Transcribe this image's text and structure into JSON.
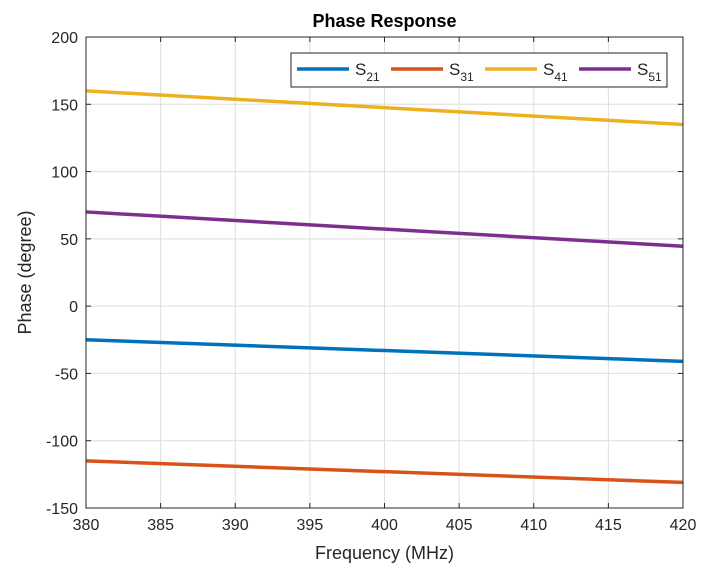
{
  "chart_data": {
    "type": "line",
    "title": "Phase Response",
    "xlabel": "Frequency (MHz)",
    "ylabel": "Phase (degree)",
    "xlim": [
      380,
      420
    ],
    "ylim": [
      -150,
      200
    ],
    "xticks": [
      380,
      385,
      390,
      395,
      400,
      405,
      410,
      415,
      420
    ],
    "yticks": [
      -150,
      -100,
      -50,
      0,
      50,
      100,
      150,
      200
    ],
    "grid": true,
    "legend_position": "top-right",
    "legend_orientation": "horizontal",
    "series": [
      {
        "name": "S21",
        "label_main": "S",
        "label_sub": "21",
        "color": "#0072BD",
        "x": [
          380,
          420
        ],
        "y": [
          -25,
          -41
        ]
      },
      {
        "name": "S31",
        "label_main": "S",
        "label_sub": "31",
        "color": "#D95319",
        "x": [
          380,
          420
        ],
        "y": [
          -115,
          -131
        ]
      },
      {
        "name": "S41",
        "label_main": "S",
        "label_sub": "41",
        "color": "#EDB120",
        "x": [
          380,
          420
        ],
        "y": [
          160,
          135
        ]
      },
      {
        "name": "S51",
        "label_main": "S",
        "label_sub": "51",
        "color": "#7E2F8E",
        "x": [
          380,
          420
        ],
        "y": [
          70,
          44.5
        ]
      }
    ]
  }
}
